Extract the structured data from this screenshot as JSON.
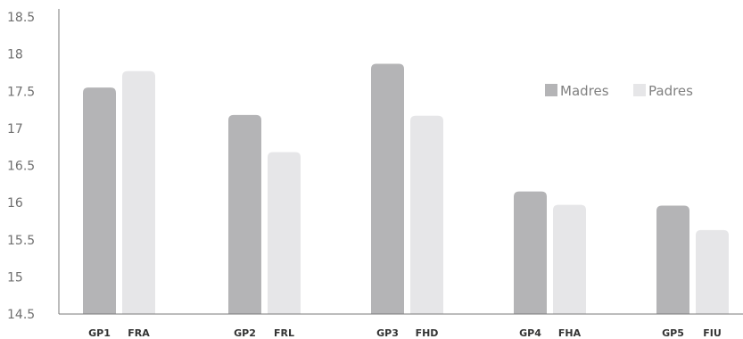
{
  "chart_data": {
    "type": "bar",
    "ylim": [
      14.5,
      18.5
    ],
    "yticks": [
      "14.5",
      "15",
      "15.5",
      "16",
      "16.5",
      "17",
      "17.5",
      "18",
      "18.5"
    ],
    "grid": false,
    "legend_position": "top-right",
    "colors": {
      "Madres": "#b4b4b6",
      "Padres": "#e6e6e8"
    },
    "groups": [
      {
        "bars": [
          {
            "series": "Madres",
            "label": "GP1",
            "value": 17.55
          },
          {
            "series": "Padres",
            "label": "FRA",
            "value": 17.77
          }
        ]
      },
      {
        "bars": [
          {
            "series": "Madres",
            "label": "GP2",
            "value": 17.18
          },
          {
            "series": "Padres",
            "label": "FRL",
            "value": 16.68
          }
        ]
      },
      {
        "bars": [
          {
            "series": "Madres",
            "label": "GP3",
            "value": 17.87
          },
          {
            "series": "Padres",
            "label": "FHD",
            "value": 17.17
          }
        ]
      },
      {
        "bars": [
          {
            "series": "Madres",
            "label": "GP4",
            "value": 16.15
          },
          {
            "series": "Padres",
            "label": "FHA",
            "value": 15.97
          }
        ]
      },
      {
        "bars": [
          {
            "series": "Madres",
            "label": "GP5",
            "value": 15.96
          },
          {
            "series": "Padres",
            "label": "FIU",
            "value": 15.63
          }
        ]
      }
    ],
    "series": [
      {
        "name": "Madres",
        "values": [
          17.55,
          17.18,
          17.87,
          16.15,
          15.96
        ]
      },
      {
        "name": "Padres",
        "values": [
          17.77,
          16.68,
          17.17,
          15.97,
          15.63
        ]
      }
    ]
  }
}
